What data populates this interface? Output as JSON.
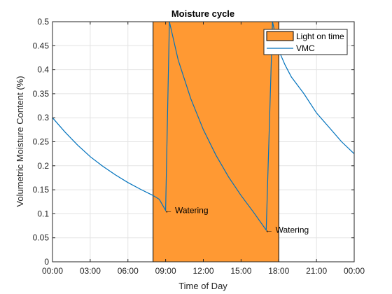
{
  "chart_data": {
    "type": "line",
    "title": "Moisture cycle",
    "xlabel": "Time of Day",
    "ylabel": "Volumetric Moisture Content (%)",
    "xlim": [
      0,
      24
    ],
    "ylim": [
      0,
      0.5
    ],
    "xticks": [
      0,
      3,
      6,
      9,
      12,
      15,
      18,
      21,
      24
    ],
    "xtick_labels": [
      "00:00",
      "03:00",
      "06:00",
      "09:00",
      "12:00",
      "15:00",
      "18:00",
      "21:00",
      "00:00"
    ],
    "yticks": [
      0,
      0.05,
      0.1,
      0.15,
      0.2,
      0.25,
      0.3,
      0.35,
      0.4,
      0.45,
      0.5
    ],
    "ytick_labels": [
      "0",
      "0.05",
      "0.1",
      "0.15",
      "0.2",
      "0.25",
      "0.3",
      "0.35",
      "0.4",
      "0.45",
      "0.5"
    ],
    "grid": true,
    "legend_position": "top-right",
    "colors": {
      "light_fill": "#ff9933",
      "vmc_line": "#0072bd",
      "grid": "#e3e3e3",
      "axes": "#262626"
    },
    "light_period": {
      "name": "Light on time",
      "start": 8,
      "end": 18
    },
    "series": [
      {
        "name": "VMC",
        "x": [
          0,
          1,
          2,
          3,
          4,
          5,
          6,
          7,
          8,
          8.5,
          9,
          9.3,
          10,
          11,
          12,
          13,
          14,
          15,
          16,
          17,
          17.5,
          18,
          18.5,
          19,
          20,
          21,
          22,
          23,
          24
        ],
        "y": [
          0.3,
          0.27,
          0.243,
          0.219,
          0.199,
          0.181,
          0.165,
          0.151,
          0.138,
          0.13,
          0.107,
          0.5,
          0.42,
          0.34,
          0.275,
          0.222,
          0.177,
          0.138,
          0.103,
          0.066,
          0.5,
          0.44,
          0.41,
          0.385,
          0.35,
          0.31,
          0.28,
          0.25,
          0.225
        ]
      }
    ],
    "annotations": [
      {
        "text": "← Watering",
        "x": 9,
        "y": 0.107
      },
      {
        "text": "← Watering",
        "x": 17,
        "y": 0.066
      }
    ]
  }
}
